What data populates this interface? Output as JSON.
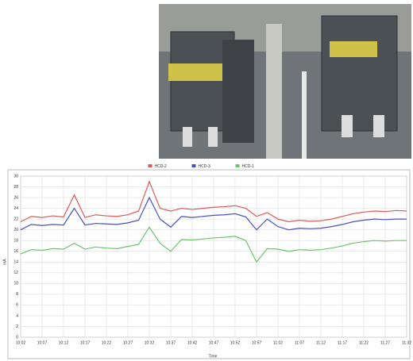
{
  "chart_data": {
    "type": "line",
    "y_label": "mA",
    "x_label": "Time",
    "categories": [
      "10:02",
      null,
      "10:07",
      null,
      "10:12",
      null,
      "10:17",
      null,
      "10:22",
      null,
      "10:27",
      null,
      "10:32",
      null,
      "10:37",
      null,
      "10:42",
      null,
      "10:47",
      null,
      "10:52",
      null,
      "10:57",
      null,
      "11:02",
      null,
      "11:07",
      null,
      "11:12",
      null,
      "11:17",
      null,
      "11:22",
      null,
      "11:27",
      null,
      "11:32"
    ],
    "series": [
      {
        "name": "HCD-2",
        "color": "#e05a5a",
        "values": [
          21.5,
          22.5,
          22.3,
          22.6,
          22.4,
          26.5,
          22.3,
          22.8,
          22.6,
          22.5,
          22.8,
          23.5,
          29,
          24,
          23.5,
          24,
          23.8,
          24,
          24.2,
          24.3,
          24.5,
          24,
          22.5,
          23.2,
          22,
          21.5,
          21.8,
          21.6,
          21.7,
          22,
          22.5,
          23,
          23.3,
          23.5,
          23.4,
          23.6,
          23.5
        ]
      },
      {
        "name": "HCD-3",
        "color": "#4a4fc4",
        "values": [
          20,
          21,
          20.8,
          21,
          20.9,
          24,
          20.9,
          21.2,
          21.1,
          21,
          21.3,
          21.8,
          26,
          22,
          20.5,
          22.5,
          22.3,
          22.5,
          22.7,
          22.8,
          23,
          22.4,
          20,
          22,
          20.6,
          20,
          20.3,
          20.2,
          20.3,
          20.6,
          21,
          21.5,
          21.8,
          22,
          21.9,
          22,
          22
        ]
      },
      {
        "name": "HCD-1",
        "color": "#6cc46c",
        "values": [
          15.5,
          16.3,
          16.2,
          16.5,
          16.4,
          17.5,
          16.4,
          16.8,
          16.6,
          16.5,
          16.9,
          17.3,
          20.5,
          17.5,
          16,
          18.2,
          18.1,
          18.3,
          18.5,
          18.6,
          18.8,
          18,
          14,
          16.5,
          16.4,
          16,
          16.3,
          16.2,
          16.3,
          16.6,
          17,
          17.5,
          17.8,
          18,
          17.9,
          18,
          18
        ]
      }
    ],
    "ylim": [
      0,
      30
    ],
    "yticks": [
      0,
      2,
      4,
      6,
      8,
      10,
      12,
      14,
      16,
      18,
      20,
      22,
      24,
      26,
      28,
      30
    ],
    "grid": true
  }
}
